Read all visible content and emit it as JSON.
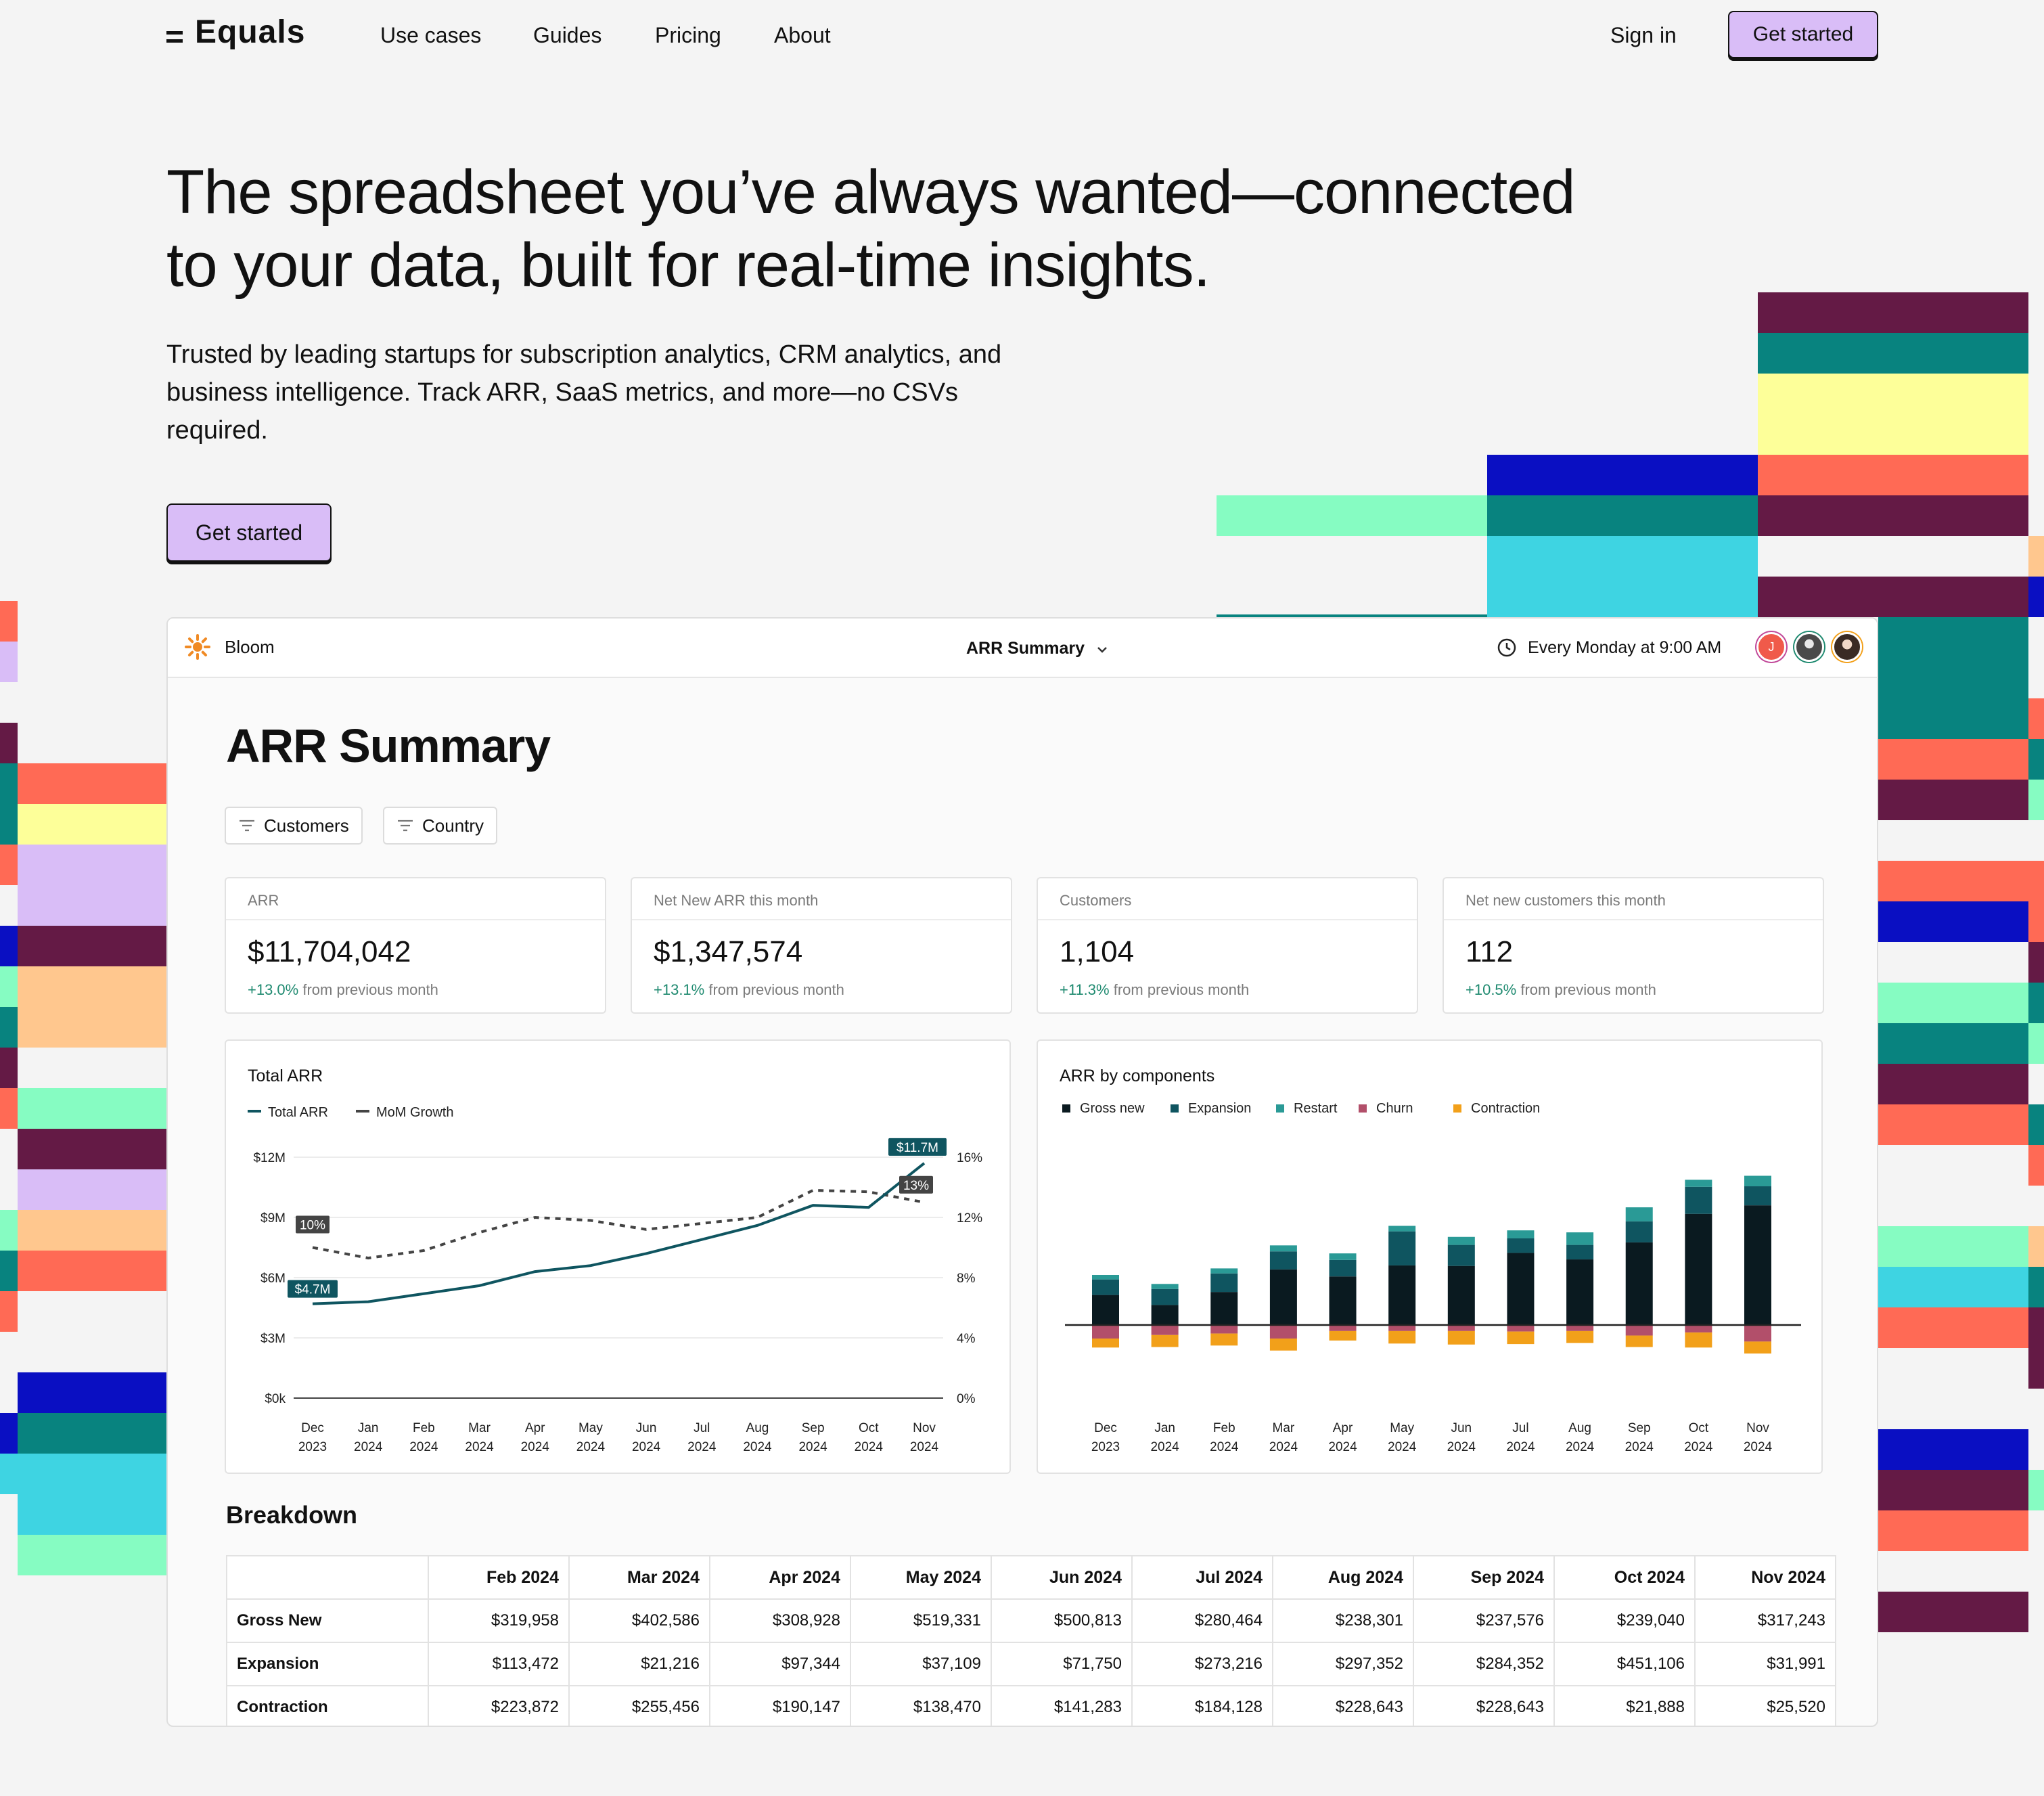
{
  "nav": {
    "logo": "Equals",
    "links": [
      "Use cases",
      "Guides",
      "Pricing",
      "About"
    ],
    "sign_in": "Sign in",
    "cta": "Get started"
  },
  "hero": {
    "title_line1": "The spreadsheet you’ve always wanted—connected",
    "title_line2": "to your data, built for real-time insights.",
    "subtitle": "Trusted by leading startups for subscription analytics, CRM analytics, and business intelligence. Track ARR, SaaS metrics, and more—no CSVs required.",
    "cta": "Get started"
  },
  "app": {
    "brand": "Bloom",
    "doc_title": "ARR Summary",
    "schedule": "Every Monday at 9:00 AM",
    "avatar_initial": "J",
    "page_title": "ARR Summary",
    "filters": [
      "Customers",
      "Country"
    ],
    "kpis": [
      {
        "label": "ARR",
        "value": "$11,704,042",
        "delta": "+13.0%",
        "suffix": "from previous month"
      },
      {
        "label": "Net New ARR this month",
        "value": "$1,347,574",
        "delta": "+13.1%",
        "suffix": "from previous month"
      },
      {
        "label": "Customers",
        "value": "1,104",
        "delta": "+11.3%",
        "suffix": "from previous month"
      },
      {
        "label": "Net new customers this month",
        "value": "112",
        "delta": "+10.5%",
        "suffix": "from previous month"
      }
    ],
    "breakdown": {
      "title": "Breakdown",
      "columns": [
        "Feb 2024",
        "Mar 2024",
        "Apr 2024",
        "May 2024",
        "Jun 2024",
        "Jul 2024",
        "Aug 2024",
        "Sep 2024",
        "Oct 2024",
        "Nov 2024"
      ],
      "rows": [
        {
          "label": "Gross New",
          "values": [
            "$319,958",
            "$402,586",
            "$308,928",
            "$519,331",
            "$500,813",
            "$280,464",
            "$238,301",
            "$237,576",
            "$239,040",
            "$317,243"
          ]
        },
        {
          "label": "Expansion",
          "values": [
            "$113,472",
            "$21,216",
            "$97,344",
            "$37,109",
            "$71,750",
            "$273,216",
            "$297,352",
            "$284,352",
            "$451,106",
            "$31,991"
          ]
        },
        {
          "label": "Contraction",
          "values": [
            "$223,872",
            "$255,456",
            "$190,147",
            "$138,470",
            "$141,283",
            "$184,128",
            "$228,643",
            "$228,643",
            "$21,888",
            "$25,520"
          ]
        }
      ]
    }
  },
  "chart_data": [
    {
      "type": "line",
      "title": "Total ARR",
      "categories": [
        "Dec 2023",
        "Jan 2024",
        "Feb 2024",
        "Mar 2024",
        "Apr 2024",
        "May 2024",
        "Jun 2024",
        "Jul 2024",
        "Aug 2024",
        "Sep 2024",
        "Oct 2024",
        "Nov 2024"
      ],
      "series": [
        {
          "name": "Total ARR",
          "axis": "left",
          "unit": "M",
          "values": [
            4.7,
            4.8,
            5.2,
            5.6,
            6.3,
            6.6,
            7.2,
            7.9,
            8.6,
            9.6,
            9.5,
            11.7
          ],
          "color": "#0f5560"
        },
        {
          "name": "MoM Growth",
          "axis": "right",
          "unit": "%",
          "values": [
            10,
            9.3,
            9.8,
            11,
            12,
            11.8,
            11.2,
            11.6,
            12,
            13.8,
            13.7,
            13
          ],
          "color": "#444444"
        }
      ],
      "y_left_ticks": [
        "$0k",
        "$3M",
        "$6M",
        "$9M",
        "$12M"
      ],
      "y_left_range": [
        0,
        12
      ],
      "y_right_ticks": [
        "0%",
        "4%",
        "8%",
        "12%",
        "16%"
      ],
      "y_right_range": [
        0,
        16
      ],
      "labels": {
        "first_arr": "$4.7M",
        "last_arr": "$11.7M",
        "first_growth": "10%",
        "last_growth": "13%"
      },
      "grid": true
    },
    {
      "type": "bar",
      "stacked": true,
      "title": "ARR by components",
      "categories": [
        "Dec 2023",
        "Jan 2024",
        "Feb 2024",
        "Mar 2024",
        "Apr 2024",
        "May 2024",
        "Jun 2024",
        "Jul 2024",
        "Aug 2024",
        "Sep 2024",
        "Oct 2024",
        "Nov 2024"
      ],
      "series": [
        {
          "name": "Gross new",
          "color": "#0a1a20",
          "values": [
            6.0,
            4.0,
            6.6,
            11.1,
            9.7,
            11.9,
            11.8,
            14.4,
            13.1,
            16.5,
            22.2,
            23.9
          ]
        },
        {
          "name": "Expansion",
          "color": "#0f5560",
          "values": [
            3.1,
            3.2,
            3.7,
            3.6,
            3.3,
            6.8,
            4.2,
            2.9,
            2.9,
            4.2,
            5.4,
            3.8
          ]
        },
        {
          "name": "Restart",
          "color": "#2a9a96",
          "values": [
            0.9,
            1.0,
            1.0,
            1.2,
            1.3,
            1.1,
            1.6,
            1.6,
            2.5,
            2.8,
            1.4,
            2.1
          ]
        },
        {
          "name": "Churn",
          "color": "#b24f6a",
          "values": [
            -2.7,
            -2.0,
            -1.7,
            -2.7,
            -1.2,
            -1.2,
            -1.2,
            -1.3,
            -1.2,
            -2.1,
            -1.5,
            -3.3
          ]
        },
        {
          "name": "Contraction",
          "color": "#f2a01a",
          "values": [
            -1.8,
            -2.4,
            -2.4,
            -2.4,
            -1.9,
            -2.5,
            -2.7,
            -2.5,
            -2.4,
            -2.3,
            -3.0,
            -2.4
          ]
        }
      ],
      "grid": false
    }
  ]
}
